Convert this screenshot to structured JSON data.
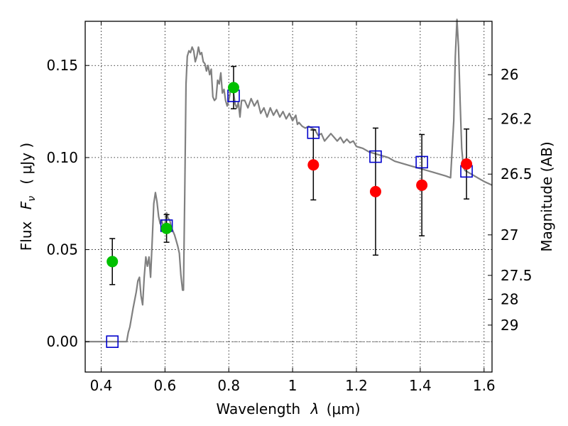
{
  "chart_data": {
    "type": "scatter",
    "xlabel_main": "Wavelength",
    "xlabel_symbol": "λ",
    "xlabel_unit": "(μm)",
    "ylabel_main": "Flux",
    "ylabel_symbol": "F",
    "ylabel_subscript": "ν",
    "ylabel_unit": "( μJy )",
    "y2label": "Magnitude (AB)",
    "xlim": [
      0.35,
      1.625
    ],
    "ylim": [
      -0.0165,
      0.174
    ],
    "grid": true,
    "xticks": [
      0.4,
      0.6,
      0.8,
      1.0,
      1.2,
      1.4,
      1.6
    ],
    "xtick_labels": [
      "0.4",
      "0.6",
      "0.8",
      "1",
      "1.2",
      "1.4",
      "1.6"
    ],
    "yticks": [
      0.0,
      0.05,
      0.1,
      0.15
    ],
    "ytick_labels": [
      "0.00",
      "0.05",
      "0.10",
      "0.15"
    ],
    "y2ticks": [
      {
        "label": "26",
        "flux": 0.145
      },
      {
        "label": "26.2",
        "flux": 0.121
      },
      {
        "label": "26.5",
        "flux": 0.091
      },
      {
        "label": "27",
        "flux": 0.058
      },
      {
        "label": "27.5",
        "flux": 0.036
      },
      {
        "label": "28",
        "flux": 0.023
      },
      {
        "label": "29",
        "flux": 0.009
      }
    ],
    "zero_line": 0.0,
    "series": [
      {
        "kind": "model-spectrum",
        "color": "#808080",
        "x": [
          0.35,
          0.48,
          0.485,
          0.49,
          0.5,
          0.51,
          0.515,
          0.52,
          0.525,
          0.53,
          0.535,
          0.54,
          0.545,
          0.55,
          0.555,
          0.56,
          0.565,
          0.57,
          0.575,
          0.58,
          0.585,
          0.59,
          0.595,
          0.6,
          0.605,
          0.61,
          0.615,
          0.62,
          0.625,
          0.63,
          0.635,
          0.64,
          0.645,
          0.65,
          0.655,
          0.658,
          0.662,
          0.666,
          0.67,
          0.675,
          0.68,
          0.685,
          0.69,
          0.695,
          0.7,
          0.705,
          0.71,
          0.715,
          0.72,
          0.725,
          0.73,
          0.735,
          0.74,
          0.745,
          0.75,
          0.755,
          0.76,
          0.765,
          0.77,
          0.775,
          0.78,
          0.785,
          0.79,
          0.795,
          0.8,
          0.805,
          0.81,
          0.815,
          0.82,
          0.825,
          0.83,
          0.835,
          0.84,
          0.85,
          0.86,
          0.87,
          0.88,
          0.89,
          0.9,
          0.91,
          0.92,
          0.93,
          0.94,
          0.95,
          0.96,
          0.97,
          0.98,
          0.99,
          1.0,
          1.01,
          1.015,
          1.02,
          1.03,
          1.04,
          1.05,
          1.06,
          1.07,
          1.08,
          1.09,
          1.1,
          1.11,
          1.12,
          1.13,
          1.14,
          1.15,
          1.16,
          1.17,
          1.18,
          1.19,
          1.2,
          1.22,
          1.24,
          1.26,
          1.28,
          1.3,
          1.32,
          1.34,
          1.36,
          1.38,
          1.4,
          1.42,
          1.44,
          1.46,
          1.48,
          1.495,
          1.505,
          1.51,
          1.515,
          1.52,
          1.525,
          1.53,
          1.535,
          1.54,
          1.56,
          1.58,
          1.6,
          1.625
        ],
        "y": [
          0.0,
          0.0,
          0.005,
          0.008,
          0.018,
          0.027,
          0.033,
          0.035,
          0.025,
          0.02,
          0.035,
          0.046,
          0.041,
          0.046,
          0.035,
          0.055,
          0.075,
          0.081,
          0.076,
          0.068,
          0.064,
          0.066,
          0.062,
          0.064,
          0.07,
          0.067,
          0.066,
          0.062,
          0.06,
          0.058,
          0.055,
          0.052,
          0.048,
          0.036,
          0.028,
          0.028,
          0.08,
          0.14,
          0.155,
          0.158,
          0.157,
          0.16,
          0.158,
          0.152,
          0.155,
          0.16,
          0.156,
          0.157,
          0.152,
          0.151,
          0.147,
          0.15,
          0.145,
          0.148,
          0.133,
          0.131,
          0.132,
          0.142,
          0.14,
          0.146,
          0.135,
          0.137,
          0.131,
          0.128,
          0.131,
          0.136,
          0.139,
          0.135,
          0.129,
          0.127,
          0.13,
          0.122,
          0.131,
          0.131,
          0.127,
          0.132,
          0.128,
          0.131,
          0.124,
          0.127,
          0.122,
          0.127,
          0.123,
          0.126,
          0.122,
          0.125,
          0.121,
          0.124,
          0.12,
          0.123,
          0.118,
          0.119,
          0.117,
          0.116,
          0.117,
          0.116,
          0.115,
          0.112,
          0.113,
          0.109,
          0.111,
          0.113,
          0.111,
          0.109,
          0.111,
          0.108,
          0.11,
          0.108,
          0.109,
          0.106,
          0.105,
          0.103,
          0.102,
          0.101,
          0.1,
          0.098,
          0.097,
          0.096,
          0.095,
          0.094,
          0.093,
          0.092,
          0.091,
          0.09,
          0.089,
          0.12,
          0.155,
          0.175,
          0.16,
          0.13,
          0.105,
          0.095,
          0.093,
          0.091,
          0.089,
          0.087,
          0.085
        ]
      },
      {
        "kind": "observed",
        "color": "#00c000",
        "x": [
          0.435,
          0.605,
          0.815
        ],
        "y": [
          0.0435,
          0.0615,
          0.138
        ],
        "yerr": [
          0.0125,
          0.0075,
          0.0115
        ]
      },
      {
        "kind": "observed",
        "color": "#ff0000",
        "x": [
          1.065,
          1.26,
          1.405,
          1.545
        ],
        "y": [
          0.096,
          0.0815,
          0.085,
          0.0965
        ],
        "yerr": [
          0.019,
          0.0345,
          0.0275,
          0.019
        ]
      },
      {
        "kind": "model-band",
        "color": "#0000cc",
        "x": [
          0.435,
          0.605,
          0.815,
          1.065,
          1.26,
          1.405,
          1.545
        ],
        "y": [
          0.0,
          0.063,
          0.1335,
          0.1135,
          0.1005,
          0.0975,
          0.0925
        ]
      }
    ]
  }
}
